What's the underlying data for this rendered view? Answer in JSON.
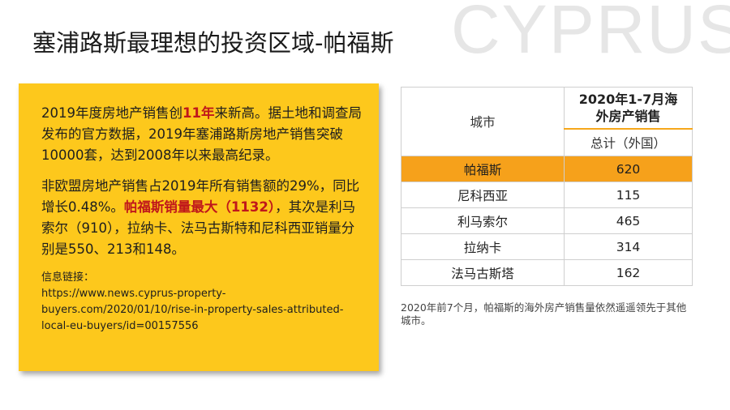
{
  "slide": {
    "title": "塞浦路斯最理想的投资区域-帕福斯",
    "watermark": "CYPRUS"
  },
  "card": {
    "p1": {
      "a": "2019年度房地产销售创",
      "highlight": "11年",
      "b": "来新高。据土地和调查局发布的官方数据，2019年塞浦路斯房地产销售突破10000套，达到2008年以来最高纪录。"
    },
    "p2": {
      "a": "非欧盟房地产销售占2019年所有销售额的29%，同比增长0.48%。",
      "highlight": "帕福斯销量最大（1132）",
      "b": "，其次是利马索尔（910），拉纳卡、法马古斯特和尼科西亚销量分别是550、213和148。"
    },
    "link_label": "信息链接：",
    "link_lines": [
      "https://www.news.cyprus-property-",
      "buyers.com/2020/01/10/rise-in-property-sales-attributed-",
      "local-eu-buyers/id=00157556"
    ]
  },
  "table": {
    "header_city": "城市",
    "header_main_line1": "2020年1-7月海",
    "header_main_line2": "外房产销售",
    "header_sub": "总计（外国）",
    "rows": [
      {
        "city": "帕福斯",
        "value": "620"
      },
      {
        "city": "尼科西亚",
        "value": "115"
      },
      {
        "city": "利马索尔",
        "value": "465"
      },
      {
        "city": "拉纳卡",
        "value": "314"
      },
      {
        "city": "法马古斯塔",
        "value": "162"
      }
    ],
    "highlight_color": "#f6a11b"
  },
  "note": "2020年前7个月，帕福斯的海外房产销售量依然遥遥领先于其他城市。",
  "colors": {
    "card_bg": "#fdc81c",
    "emphasis_red": "#c0171b",
    "watermark": "#e6e6e6"
  }
}
